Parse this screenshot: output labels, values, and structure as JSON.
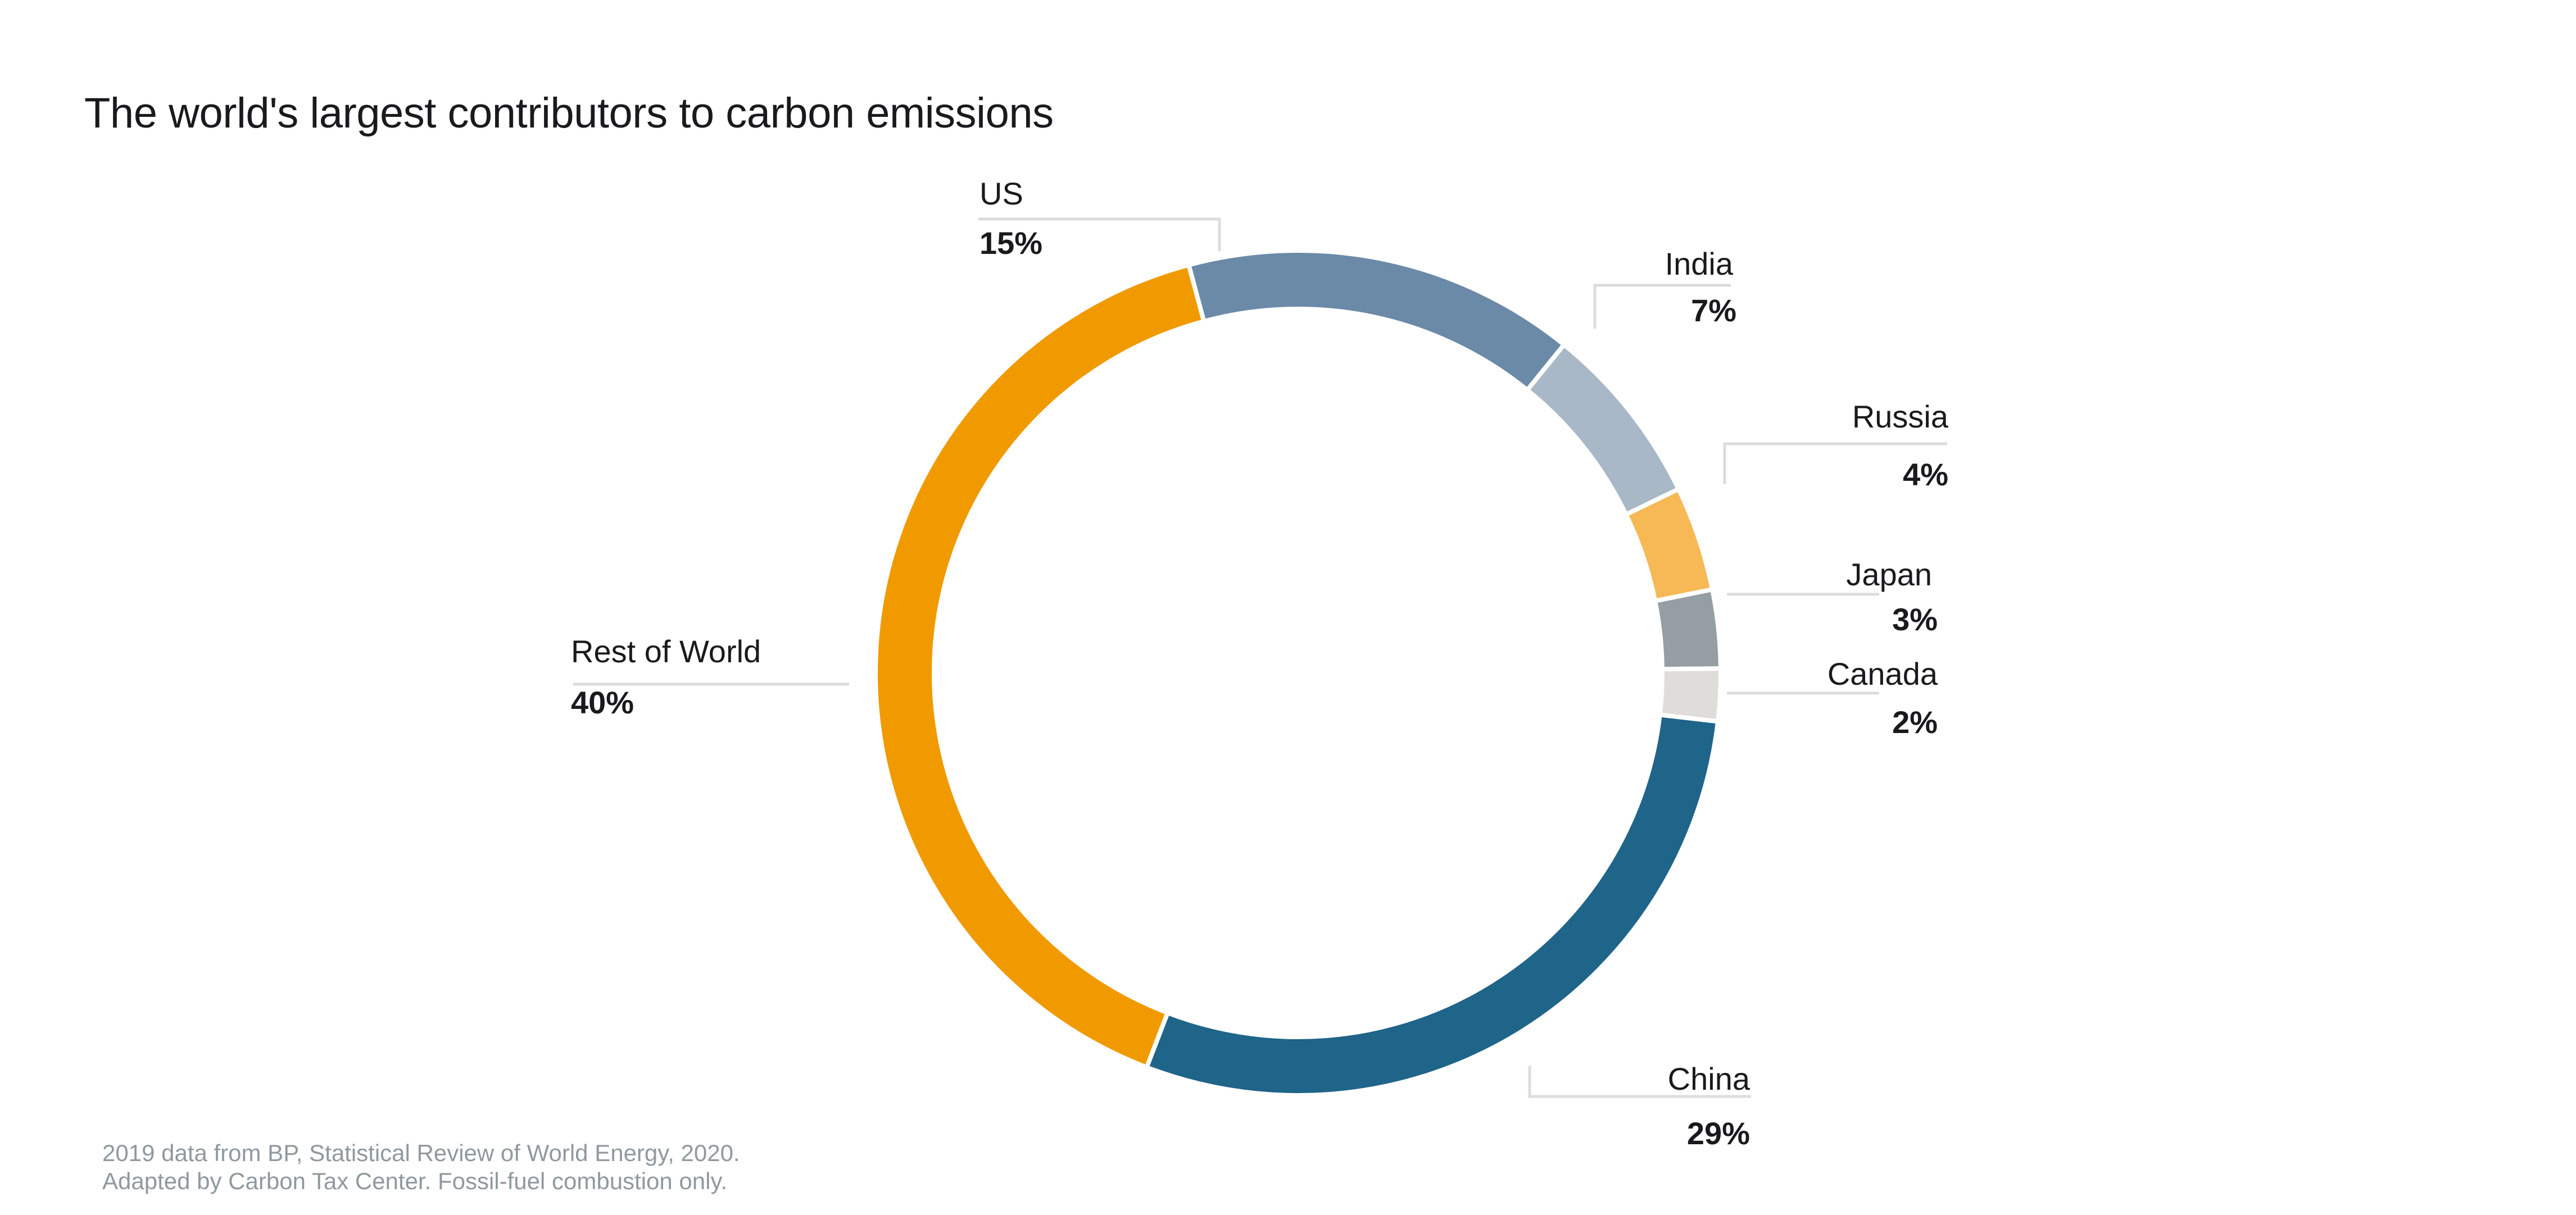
{
  "title": "The world's largest contributors to carbon emissions",
  "footer": {
    "line1": "2019 data from BP, Statistical Review of World Energy, 2020.",
    "line2": "Adapted by Carbon Tax Center. Fossil-fuel combustion only."
  },
  "labels": {
    "us": {
      "name": "US",
      "pct": "15%"
    },
    "india": {
      "name": "India",
      "pct": "7%"
    },
    "russia": {
      "name": "Russia",
      "pct": "4%"
    },
    "japan": {
      "name": "Japan",
      "pct": "3%"
    },
    "canada": {
      "name": "Canada",
      "pct": "2%"
    },
    "china": {
      "name": "China",
      "pct": "29%"
    },
    "row": {
      "name": "Rest of World",
      "pct": "40%"
    }
  },
  "chart_data": {
    "type": "pie",
    "subtype": "donut",
    "title": "The world's largest contributors to carbon emissions",
    "categories": [
      "US",
      "India",
      "Russia",
      "Japan",
      "Canada",
      "China",
      "Rest of World"
    ],
    "values": [
      15,
      7,
      4,
      3,
      2,
      29,
      40
    ],
    "unit": "%",
    "colors": [
      "#6b8aa8",
      "#a8b8c7",
      "#f6b955",
      "#949ea3",
      "#e0dcd9",
      "#1f6489",
      "#f09a00"
    ],
    "start_angle_deg": -15,
    "direction": "clockwise",
    "annotation": "2019 data from BP, Statistical Review of World Energy, 2020. Adapted by Carbon Tax Center. Fossil-fuel combustion only."
  }
}
